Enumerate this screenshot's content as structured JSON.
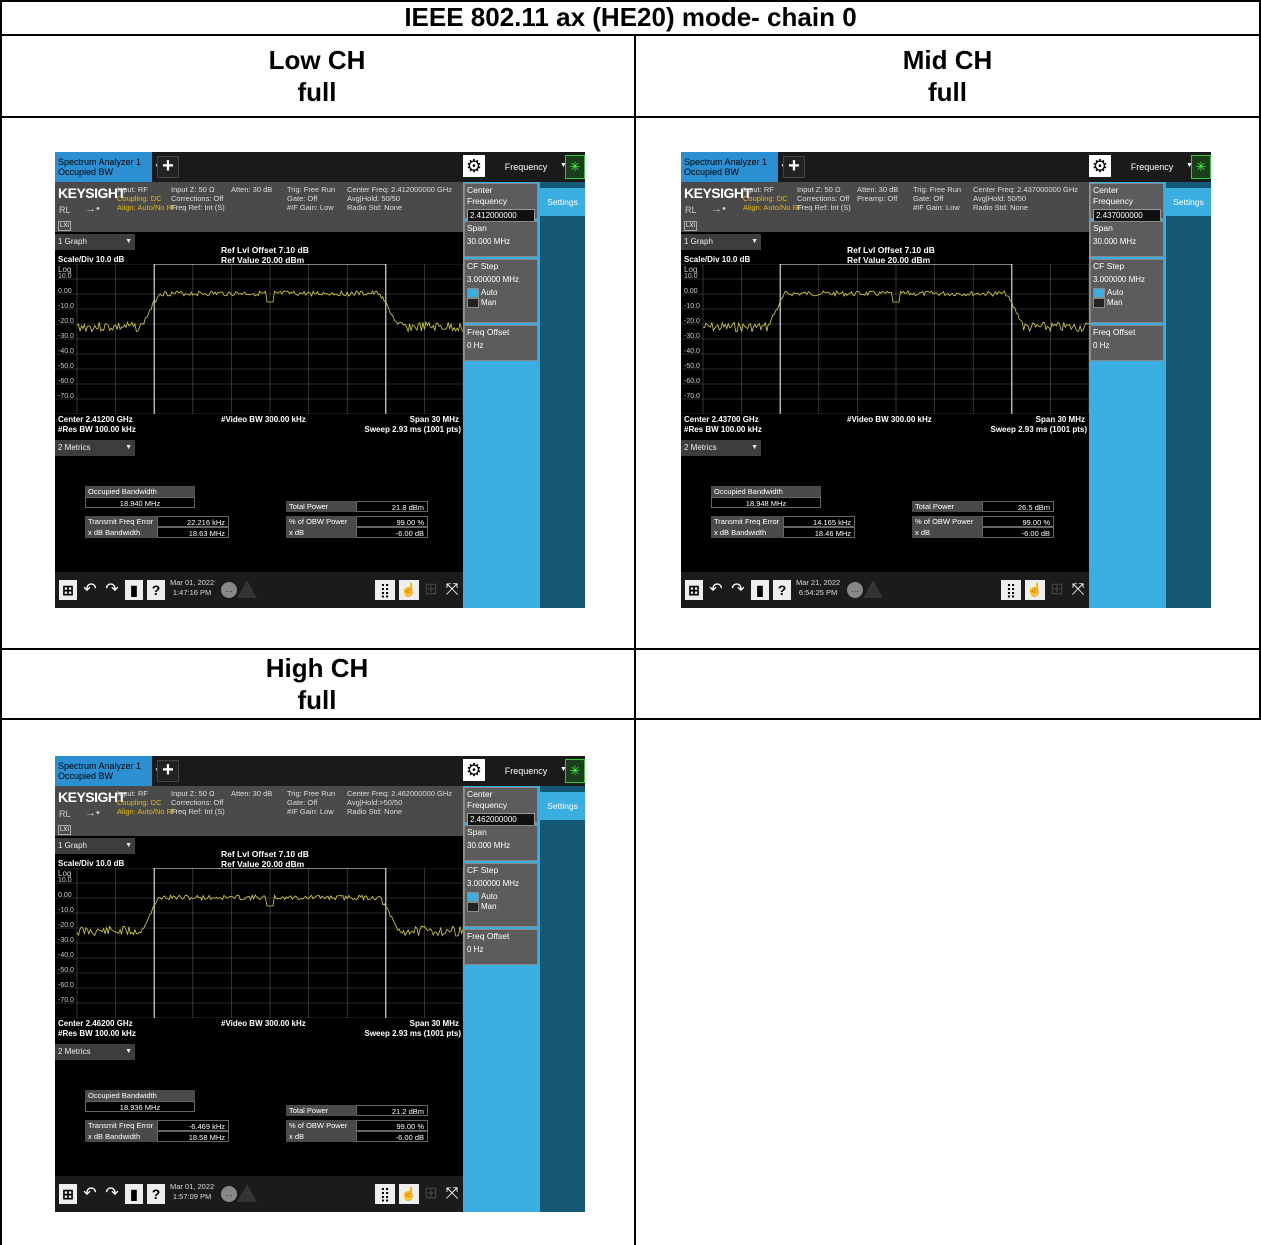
{
  "title": "IEEE 802.11 ax (HE20) mode- chain 0",
  "panels": [
    {
      "channel": "Low CH",
      "mode": "full",
      "analyzer": {
        "tab_title_1": "Spectrum Analyzer 1",
        "tab_title_2": "Occupied BW",
        "brand": "KEYSIGHT",
        "rl": "RL",
        "input": "Input: RF",
        "coupling": "Coupling: DC",
        "align": "Align: Auto/No RF",
        "input_z": "Input Z: 50 Ω",
        "corrections": "Corrections: Off",
        "freq_ref": "Freq Ref: Int (S)",
        "atten": "Atten: 30 dB",
        "preamp": "",
        "trig": "Trig: Free Run",
        "gate": "Gate: Off",
        "if_gain": "#IF Gain: Low",
        "center_freq_info": "Center Freq: 2.412000000 GHz",
        "avg_hold": "Avg|Hold: 50/50",
        "radio_std": "Radio Std: None",
        "menu": "Frequency",
        "settings": "Settings",
        "center_freq_label": "Center Frequency",
        "center_freq_value": "2.412000000 GHz",
        "span_label": "Span",
        "span_value": "30.000 MHz",
        "cf_step_label": "CF Step",
        "cf_step_value": "3.000000 MHz",
        "auto": "Auto",
        "man": "Man",
        "freq_offset_label": "Freq Offset",
        "freq_offset_value": "0 Hz",
        "graph_tab": "1 Graph",
        "ref_offset": "Ref Lvl Offset 7.10 dB",
        "ref_value": "Ref Value 20.00 dBm",
        "scale": "Scale/Div 10.0 dB",
        "log": "Log",
        "y_ticks": [
          "10.0",
          "0.00",
          "-10.0",
          "-20.0",
          "-30.0",
          "-40.0",
          "-50.0",
          "-60.0",
          "-70.0"
        ],
        "center_label": "Center 2.41200 GHz",
        "res_bw": "#Res BW 100.00 kHz",
        "video_bw": "#Video BW 300.00 kHz",
        "span_bottom": "Span 30 MHz",
        "sweep": "Sweep 2.93 ms (1001 pts)",
        "metrics_tab": "2 Metrics",
        "obw_label": "Occupied Bandwidth",
        "obw_value": "18.940 MHz",
        "tfe_label": "Transmit Freq Error",
        "tfe_value": "22.216 kHz",
        "xdb_bw_label": "x dB Bandwidth",
        "xdb_bw_value": "18.63 MHz",
        "total_power_label": "Total Power",
        "total_power_value": "21.8 dBm",
        "obw_pct_label": "% of OBW Power",
        "obw_pct_value": "99.00 %",
        "xdb_label": "x dB",
        "xdb_value": "-6.00 dB",
        "date": "Mar 01, 2022",
        "time": "1:47:16 PM",
        "trace_seed": 3
      }
    },
    {
      "channel": "Mid CH",
      "mode": "full",
      "analyzer": {
        "tab_title_1": "Spectrum Analyzer 1",
        "tab_title_2": "Occupied BW",
        "brand": "KEYSIGHT",
        "rl": "RL",
        "input": "Input: RF",
        "coupling": "Coupling: DC",
        "align": "Align: Auto/No RF",
        "input_z": "Input Z: 50 Ω",
        "corrections": "Corrections: Off",
        "freq_ref": "Freq Ref: Int (S)",
        "atten": "Atten: 30 dB",
        "preamp": "Preamp: Off",
        "trig": "Trig: Free Run",
        "gate": "Gate: Off",
        "if_gain": "#IF Gain: Low",
        "center_freq_info": "Center Freq: 2.437000000 GHz",
        "avg_hold": "Avg|Hold: 50/50",
        "radio_std": "Radio Std: None",
        "menu": "Frequency",
        "settings": "Settings",
        "center_freq_label": "Center Frequency",
        "center_freq_value": "2.437000000 GHz",
        "span_label": "Span",
        "span_value": "30.000 MHz",
        "cf_step_label": "CF Step",
        "cf_step_value": "3.000000 MHz",
        "auto": "Auto",
        "man": "Man",
        "freq_offset_label": "Freq Offset",
        "freq_offset_value": "0 Hz",
        "graph_tab": "1 Graph",
        "ref_offset": "Ref Lvl Offset 7.10 dB",
        "ref_value": "Ref Value 20.00 dBm",
        "scale": "Scale/Div 10.0 dB",
        "log": "Log",
        "y_ticks": [
          "10.0",
          "0.00",
          "-10.0",
          "-20.0",
          "-30.0",
          "-40.0",
          "-50.0",
          "-60.0",
          "-70.0"
        ],
        "center_label": "Center 2.43700 GHz",
        "res_bw": "#Res BW 100.00 kHz",
        "video_bw": "#Video BW 300.00 kHz",
        "span_bottom": "Span 30 MHz",
        "sweep": "Sweep 2.93 ms (1001 pts)",
        "metrics_tab": "2 Metrics",
        "obw_label": "Occupied Bandwidth",
        "obw_value": "18.948 MHz",
        "tfe_label": "Transmit Freq Error",
        "tfe_value": "14.165 kHz",
        "xdb_bw_label": "x dB Bandwidth",
        "xdb_bw_value": "18.46 MHz",
        "total_power_label": "Total Power",
        "total_power_value": "26.5 dBm",
        "obw_pct_label": "% of OBW Power",
        "obw_pct_value": "99.00 %",
        "xdb_label": "x dB",
        "xdb_value": "-6.00 dB",
        "date": "Mar 21, 2022",
        "time": "6:54:25 PM",
        "trace_seed": 7
      }
    },
    {
      "channel": "High CH",
      "mode": "full",
      "analyzer": {
        "tab_title_1": "Spectrum Analyzer 1",
        "tab_title_2": "Occupied BW",
        "brand": "KEYSIGHT",
        "rl": "RL",
        "input": "Input: RF",
        "coupling": "Coupling: DC",
        "align": "Align: Auto/No RF",
        "input_z": "Input Z: 50 Ω",
        "corrections": "Corrections: Off",
        "freq_ref": "Freq Ref: Int (S)",
        "atten": "Atten: 30 dB",
        "preamp": "",
        "trig": "Trig: Free Run",
        "gate": "Gate: Off",
        "if_gain": "#IF Gain: Low",
        "center_freq_info": "Center Freq: 2.462000000 GHz",
        "avg_hold": "Avg|Hold:>50/50",
        "radio_std": "Radio Std: None",
        "menu": "Frequency",
        "settings": "Settings",
        "center_freq_label": "Center Frequency",
        "center_freq_value": "2.462000000 GHz",
        "span_label": "Span",
        "span_value": "30.000 MHz",
        "cf_step_label": "CF Step",
        "cf_step_value": "3.000000 MHz",
        "auto": "Auto",
        "man": "Man",
        "freq_offset_label": "Freq Offset",
        "freq_offset_value": "0 Hz",
        "graph_tab": "1 Graph",
        "ref_offset": "Ref Lvl Offset 7.10 dB",
        "ref_value": "Ref Value 20.00 dBm",
        "scale": "Scale/Div 10.0 dB",
        "log": "Log",
        "y_ticks": [
          "10.0",
          "0.00",
          "-10.0",
          "-20.0",
          "-30.0",
          "-40.0",
          "-50.0",
          "-60.0",
          "-70.0"
        ],
        "center_label": "Center 2.46200 GHz",
        "res_bw": "#Res BW 100.00 kHz",
        "video_bw": "#Video BW 300.00 kHz",
        "span_bottom": "Span 30 MHz",
        "sweep": "Sweep 2.93 ms (1001 pts)",
        "metrics_tab": "2 Metrics",
        "obw_label": "Occupied Bandwidth",
        "obw_value": "18.936 MHz",
        "tfe_label": "Transmit Freq Error",
        "tfe_value": "-6.469 kHz",
        "xdb_bw_label": "x dB Bandwidth",
        "xdb_bw_value": "18.58 MHz",
        "total_power_label": "Total Power",
        "total_power_value": "21.2 dBm",
        "obw_pct_label": "% of OBW Power",
        "obw_pct_value": "99.00 %",
        "xdb_label": "x dB",
        "xdb_value": "-6.00 dB",
        "date": "Mar 01, 2022",
        "time": "1:57:09 PM",
        "trace_seed": 11
      }
    }
  ]
}
